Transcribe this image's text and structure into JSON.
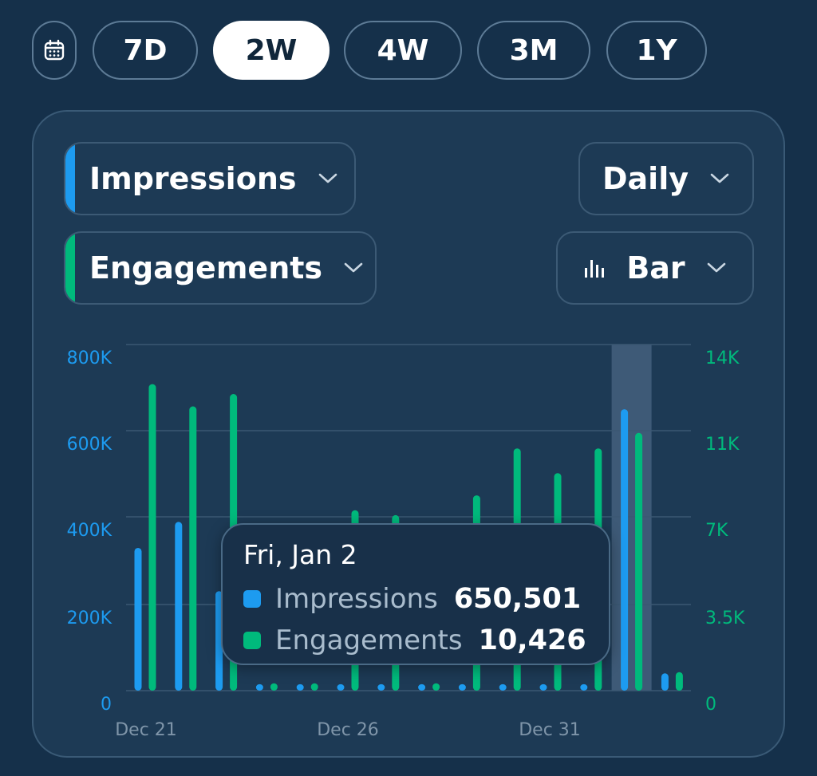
{
  "range_selector": {
    "options": [
      {
        "label": "7D",
        "active": false
      },
      {
        "label": "2W",
        "active": true
      },
      {
        "label": "4W",
        "active": false
      },
      {
        "label": "3M",
        "active": false
      },
      {
        "label": "1Y",
        "active": false
      }
    ],
    "calendar_icon": "calendar-icon"
  },
  "selectors": {
    "metric1": {
      "label": "Impressions",
      "color": "#1d9bf0"
    },
    "metric2": {
      "label": "Engagements",
      "color": "#00ba7c"
    },
    "interval": {
      "label": "Daily"
    },
    "chart_type": {
      "label": "Bar",
      "icon": "bar-chart-icon"
    }
  },
  "chart_data": {
    "type": "bar",
    "x_labels": [
      "Dec 21",
      "Dec 26",
      "Dec 31"
    ],
    "categories": [
      "Dec 21",
      "Dec 22",
      "Dec 23",
      "Dec 24",
      "Dec 25",
      "Dec 26",
      "Dec 27",
      "Dec 28",
      "Dec 29",
      "Dec 30",
      "Dec 31",
      "Jan 1",
      "Jan 2",
      "Jan 3"
    ],
    "y_left": {
      "ticks": [
        "0",
        "200K",
        "400K",
        "600K",
        "800K"
      ],
      "max": 800000,
      "color": "#1d9bf0"
    },
    "y_right": {
      "ticks": [
        "0",
        "3.5K",
        "7K",
        "11K",
        "14K"
      ],
      "max": 14000,
      "color": "#00ba7c"
    },
    "highlight_index": 12,
    "series": [
      {
        "name": "Impressions",
        "axis": "left",
        "color": "#1d9bf0",
        "values": [
          330000,
          390000,
          230000,
          15000,
          15000,
          15000,
          15000,
          15000,
          15000,
          15000,
          15000,
          15000,
          650501,
          40000
        ]
      },
      {
        "name": "Engagements",
        "axis": "right",
        "color": "#00ba7c",
        "values": [
          12400,
          11500,
          12000,
          300,
          300,
          7300,
          7100,
          300,
          7900,
          9800,
          8800,
          9800,
          10426,
          750
        ]
      }
    ]
  },
  "tooltip": {
    "date": "Fri, Jan 2",
    "rows": [
      {
        "name": "Impressions",
        "value": "650,501",
        "color": "#1d9bf0"
      },
      {
        "name": "Engagements",
        "value": "10,426",
        "color": "#00ba7c"
      }
    ]
  }
}
